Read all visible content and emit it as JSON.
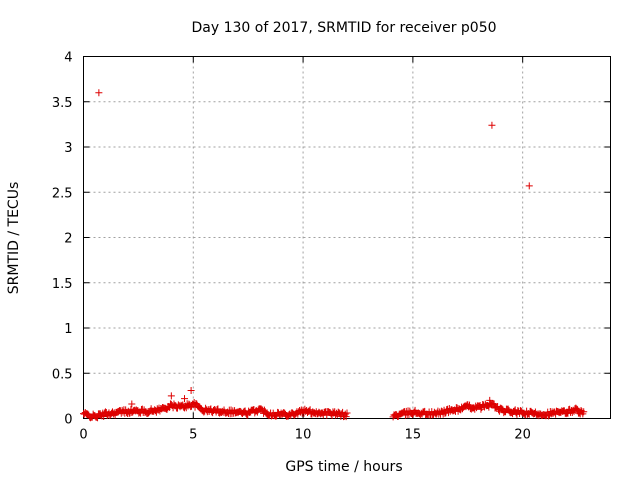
{
  "chart_data": {
    "type": "scatter",
    "title": "Day 130 of 2017, SRMTID for receiver p050",
    "xlabel": "GPS time / hours",
    "ylabel": "SRMTID / TECUs",
    "xlim": [
      0,
      24
    ],
    "ylim": [
      0,
      4
    ],
    "xticks": [
      0,
      5,
      10,
      15,
      20
    ],
    "xtick_labels": [
      "0",
      "5",
      "10",
      "15",
      "20"
    ],
    "yticks": [
      0,
      0.5,
      1,
      1.5,
      2,
      2.5,
      3,
      3.5,
      4
    ],
    "ytick_labels": [
      "0",
      "0.5",
      "1",
      "1.5",
      "2",
      "2.5",
      "3",
      "3.5",
      "4"
    ],
    "grid": true,
    "marker": "+",
    "series": [
      {
        "name": "SRMTID",
        "color": "#dd0000",
        "outliers": [
          {
            "x": 0.7,
            "y": 3.6
          },
          {
            "x": 18.6,
            "y": 3.24
          },
          {
            "x": 20.3,
            "y": 2.57
          },
          {
            "x": 4.0,
            "y": 0.25
          },
          {
            "x": 4.9,
            "y": 0.31
          },
          {
            "x": 4.6,
            "y": 0.22
          },
          {
            "x": 18.5,
            "y": 0.2
          },
          {
            "x": 2.2,
            "y": 0.16
          }
        ],
        "segments": [
          {
            "start": 0.0,
            "end": 12.0,
            "step": 0.04,
            "profile": [
              {
                "x": 0.0,
                "y": 0.05
              },
              {
                "x": 0.5,
                "y": 0.02
              },
              {
                "x": 1.0,
                "y": 0.05
              },
              {
                "x": 2.0,
                "y": 0.08
              },
              {
                "x": 3.0,
                "y": 0.08
              },
              {
                "x": 3.5,
                "y": 0.1
              },
              {
                "x": 4.0,
                "y": 0.14
              },
              {
                "x": 4.5,
                "y": 0.13
              },
              {
                "x": 5.0,
                "y": 0.16
              },
              {
                "x": 5.5,
                "y": 0.09
              },
              {
                "x": 6.5,
                "y": 0.08
              },
              {
                "x": 7.5,
                "y": 0.06
              },
              {
                "x": 8.0,
                "y": 0.1
              },
              {
                "x": 8.5,
                "y": 0.05
              },
              {
                "x": 9.5,
                "y": 0.05
              },
              {
                "x": 10.0,
                "y": 0.08
              },
              {
                "x": 11.0,
                "y": 0.06
              },
              {
                "x": 12.0,
                "y": 0.04
              }
            ]
          },
          {
            "start": 14.1,
            "end": 22.8,
            "step": 0.04,
            "profile": [
              {
                "x": 14.1,
                "y": 0.03
              },
              {
                "x": 15.0,
                "y": 0.07
              },
              {
                "x": 16.0,
                "y": 0.05
              },
              {
                "x": 16.5,
                "y": 0.08
              },
              {
                "x": 17.0,
                "y": 0.1
              },
              {
                "x": 17.5,
                "y": 0.13
              },
              {
                "x": 18.0,
                "y": 0.12
              },
              {
                "x": 18.6,
                "y": 0.16
              },
              {
                "x": 19.0,
                "y": 0.09
              },
              {
                "x": 20.0,
                "y": 0.06
              },
              {
                "x": 21.0,
                "y": 0.05
              },
              {
                "x": 22.0,
                "y": 0.07
              },
              {
                "x": 22.4,
                "y": 0.1
              },
              {
                "x": 22.8,
                "y": 0.05
              }
            ]
          }
        ]
      }
    ]
  }
}
